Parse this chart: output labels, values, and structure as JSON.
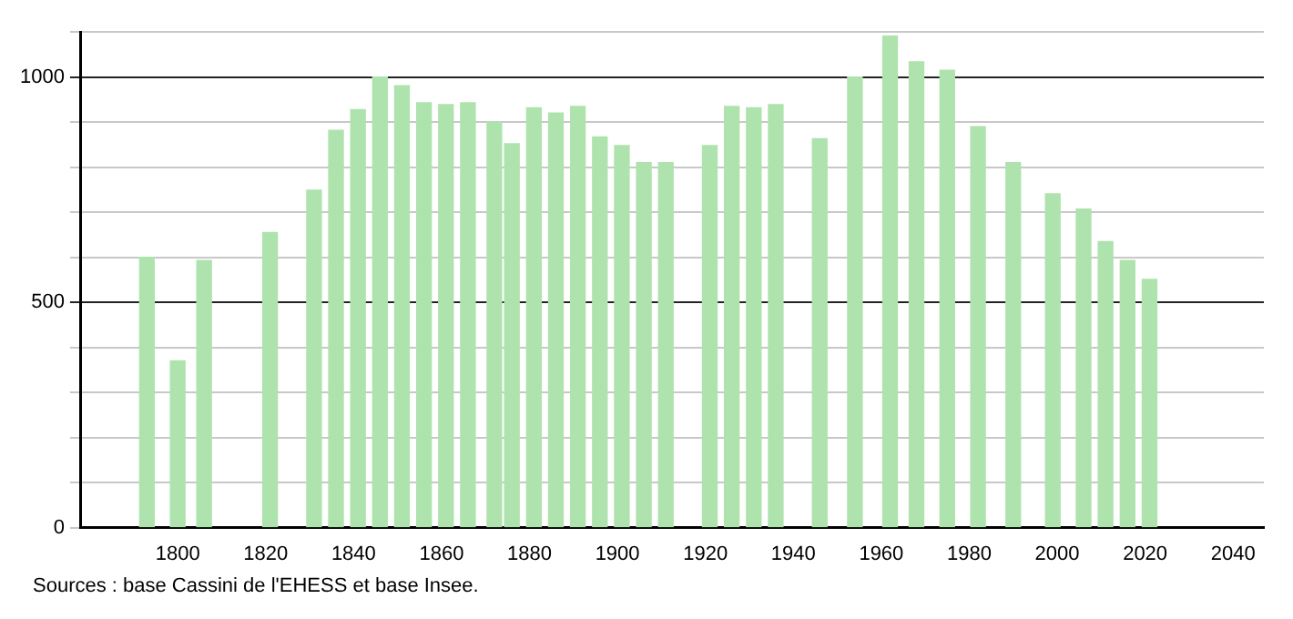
{
  "chart_data": {
    "type": "bar",
    "x": [
      1793,
      1800,
      1806,
      1821,
      1831,
      1836,
      1841,
      1846,
      1851,
      1856,
      1861,
      1866,
      1872,
      1876,
      1881,
      1886,
      1891,
      1896,
      1901,
      1906,
      1911,
      1921,
      1926,
      1931,
      1936,
      1946,
      1954,
      1962,
      1968,
      1975,
      1982,
      1990,
      1999,
      2006,
      2011,
      2016,
      2021
    ],
    "values": [
      600,
      370,
      593,
      655,
      749,
      882,
      928,
      1000,
      981,
      943,
      939,
      943,
      900,
      852,
      932,
      920,
      935,
      867,
      848,
      810,
      810,
      848,
      935,
      932,
      939,
      863,
      1000,
      1091,
      1034,
      1015,
      890,
      810,
      741,
      707,
      635,
      593,
      551
    ],
    "color": "#aee3ae",
    "xlim": [
      1778,
      2047
    ],
    "xticks": [
      1800,
      1820,
      1840,
      1860,
      1880,
      1900,
      1920,
      1940,
      1960,
      1980,
      2000,
      2020,
      2040
    ],
    "ylim": [
      0,
      1100
    ],
    "yticks": [
      0,
      {
        "value": 100,
        "label": null
      },
      {
        "value": 200,
        "label": null
      },
      {
        "value": 300,
        "label": null
      },
      {
        "value": 400,
        "label": null
      },
      500,
      {
        "value": 600,
        "label": null
      },
      {
        "value": 700,
        "label": null
      },
      {
        "value": 800,
        "label": null
      },
      {
        "value": 900,
        "label": null
      },
      1000,
      {
        "value": 1100,
        "label": null
      }
    ],
    "grid": "y",
    "annotations": [
      "Sources : base Cassini de l'EHESS et base Insee."
    ]
  }
}
